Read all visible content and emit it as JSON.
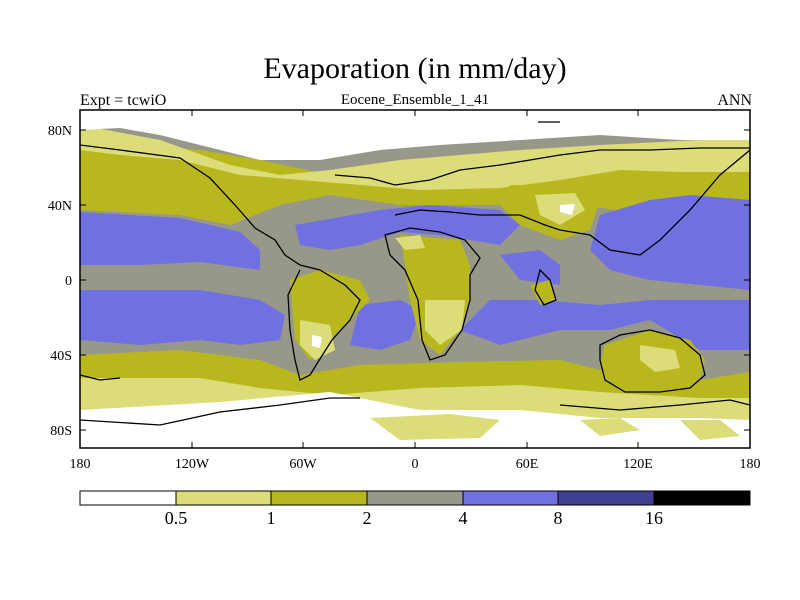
{
  "header": {
    "title": "Evaporation (in mm/day)",
    "left_label": "Expt = tcwiO",
    "center_label": "Eocene_Ensemble_1_41",
    "right_label": "ANN"
  },
  "axes": {
    "lat_labels": [
      "80N",
      "40N",
      "0",
      "40S",
      "80S"
    ],
    "lon_labels": [
      "180",
      "120W",
      "60W",
      "0",
      "60E",
      "120E",
      "180"
    ]
  },
  "colorbar": {
    "labels": [
      "0.5",
      "1",
      "2",
      "4",
      "8",
      "16"
    ],
    "colors": [
      "#ffffff",
      "#dcdc78",
      "#b8b81e",
      "#98988a",
      "#7070e0",
      "#404090",
      "#000000"
    ]
  }
}
